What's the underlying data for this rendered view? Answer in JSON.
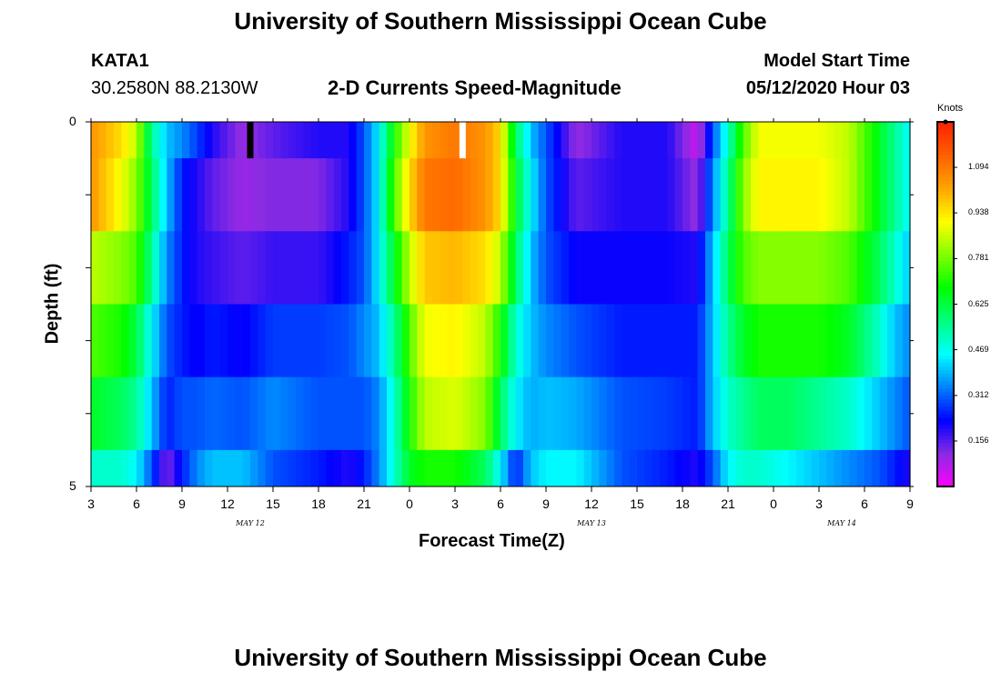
{
  "header": {
    "title_top": "University of Southern Mississippi Ocean Cube",
    "title_bottom": "University of Southern Mississippi Ocean Cube",
    "station_id": "KATA1",
    "station_coords": "30.2580N 88.2130W",
    "plot_title": "2-D Currents Speed-Magnitude",
    "model_start_label": "Model Start Time",
    "model_start_value": "05/12/2020 Hour 03"
  },
  "colors": {
    "colormap": [
      "#ff00ff",
      "#8a2be2",
      "#0000ff",
      "#0080ff",
      "#00ffff",
      "#00ff80",
      "#00ff00",
      "#80ff00",
      "#ffff00",
      "#ffa500",
      "#ff6000",
      "#ff2000"
    ],
    "marker_black": "#000000",
    "marker_white": "#ffffff"
  },
  "chart_data": {
    "type": "heatmap",
    "title": "2-D Currents Speed-Magnitude",
    "xlabel": "Forecast Time(Z)",
    "ylabel": "Depth (ft)",
    "units_label": "Knots",
    "x_start_hour": 3,
    "x_hours": 54,
    "xlim": [
      3,
      57
    ],
    "ylim": [
      0,
      5
    ],
    "x_tick_labels": [
      "3",
      "6",
      "9",
      "12",
      "15",
      "18",
      "21",
      "0",
      "3",
      "6",
      "9",
      "12",
      "15",
      "18",
      "21",
      "0",
      "3",
      "6",
      "9"
    ],
    "y_tick_labels": [
      "0",
      "5"
    ],
    "date_labels": [
      {
        "text": "MAY 12",
        "at_tick": 3.5
      },
      {
        "text": "MAY 13",
        "at_tick": 11.0
      },
      {
        "text": "MAY 14",
        "at_tick": 16.5
      }
    ],
    "colorbar_ticks": [
      "0.156",
      "0.312",
      "0.469",
      "0.625",
      "0.781",
      "0.938",
      "1.094"
    ],
    "vmin": 0.0,
    "vmax": 1.25,
    "depth_levels": [
      0.25,
      1.0,
      2.0,
      3.0,
      4.0,
      4.75
    ],
    "control_points": {
      "hours": [
        3,
        5,
        6,
        7,
        8,
        9,
        10,
        11,
        13,
        15,
        18,
        20,
        21,
        22,
        23,
        24,
        25,
        27,
        29,
        30,
        31,
        32,
        33,
        35,
        38,
        41,
        43,
        44,
        45,
        46,
        47,
        49,
        51,
        53,
        55,
        56,
        57
      ],
      "rows": [
        [
          1.05,
          0.95,
          0.85,
          0.55,
          0.4,
          0.35,
          0.28,
          0.2,
          0.1,
          0.15,
          0.2,
          0.2,
          0.3,
          0.45,
          0.7,
          0.9,
          1.05,
          1.1,
          1.05,
          0.95,
          0.6,
          0.4,
          0.3,
          0.1,
          0.2,
          0.2,
          0.05,
          0.3,
          0.5,
          0.75,
          0.9,
          0.9,
          0.9,
          0.85,
          0.65,
          0.55,
          0.45
        ],
        [
          1.05,
          0.9,
          0.8,
          0.6,
          0.4,
          0.25,
          0.2,
          0.15,
          0.1,
          0.12,
          0.12,
          0.2,
          0.3,
          0.45,
          0.75,
          0.95,
          1.1,
          1.12,
          1.05,
          0.95,
          0.65,
          0.45,
          0.3,
          0.15,
          0.2,
          0.2,
          0.1,
          0.35,
          0.55,
          0.8,
          0.92,
          0.92,
          0.92,
          0.85,
          0.65,
          0.55,
          0.45
        ],
        [
          0.85,
          0.8,
          0.75,
          0.55,
          0.35,
          0.25,
          0.2,
          0.18,
          0.15,
          0.18,
          0.18,
          0.25,
          0.3,
          0.45,
          0.65,
          0.85,
          0.98,
          1.0,
          0.95,
          0.85,
          0.6,
          0.4,
          0.3,
          0.22,
          0.22,
          0.22,
          0.2,
          0.4,
          0.6,
          0.75,
          0.8,
          0.8,
          0.8,
          0.75,
          0.6,
          0.5,
          0.4
        ],
        [
          0.75,
          0.7,
          0.62,
          0.45,
          0.3,
          0.25,
          0.22,
          0.25,
          0.22,
          0.28,
          0.28,
          0.3,
          0.35,
          0.4,
          0.55,
          0.75,
          0.9,
          0.92,
          0.85,
          0.7,
          0.5,
          0.4,
          0.35,
          0.3,
          0.25,
          0.25,
          0.25,
          0.4,
          0.55,
          0.65,
          0.7,
          0.7,
          0.7,
          0.65,
          0.5,
          0.4,
          0.35
        ],
        [
          0.65,
          0.6,
          0.55,
          0.4,
          0.25,
          0.3,
          0.3,
          0.32,
          0.3,
          0.35,
          0.3,
          0.3,
          0.3,
          0.35,
          0.5,
          0.7,
          0.85,
          0.88,
          0.8,
          0.6,
          0.45,
          0.38,
          0.4,
          0.38,
          0.3,
          0.28,
          0.25,
          0.4,
          0.5,
          0.55,
          0.6,
          0.6,
          0.55,
          0.5,
          0.4,
          0.35,
          0.3
        ],
        [
          0.5,
          0.5,
          0.45,
          0.3,
          0.12,
          0.25,
          0.35,
          0.4,
          0.4,
          0.3,
          0.25,
          0.2,
          0.25,
          0.35,
          0.5,
          0.65,
          0.7,
          0.7,
          0.6,
          0.45,
          0.25,
          0.4,
          0.45,
          0.45,
          0.3,
          0.25,
          0.2,
          0.3,
          0.45,
          0.5,
          0.5,
          0.45,
          0.4,
          0.35,
          0.3,
          0.25,
          0.2
        ]
      ]
    },
    "markers": [
      {
        "hour": 13.5,
        "color": "black"
      },
      {
        "hour": 27.5,
        "color": "white"
      }
    ]
  }
}
